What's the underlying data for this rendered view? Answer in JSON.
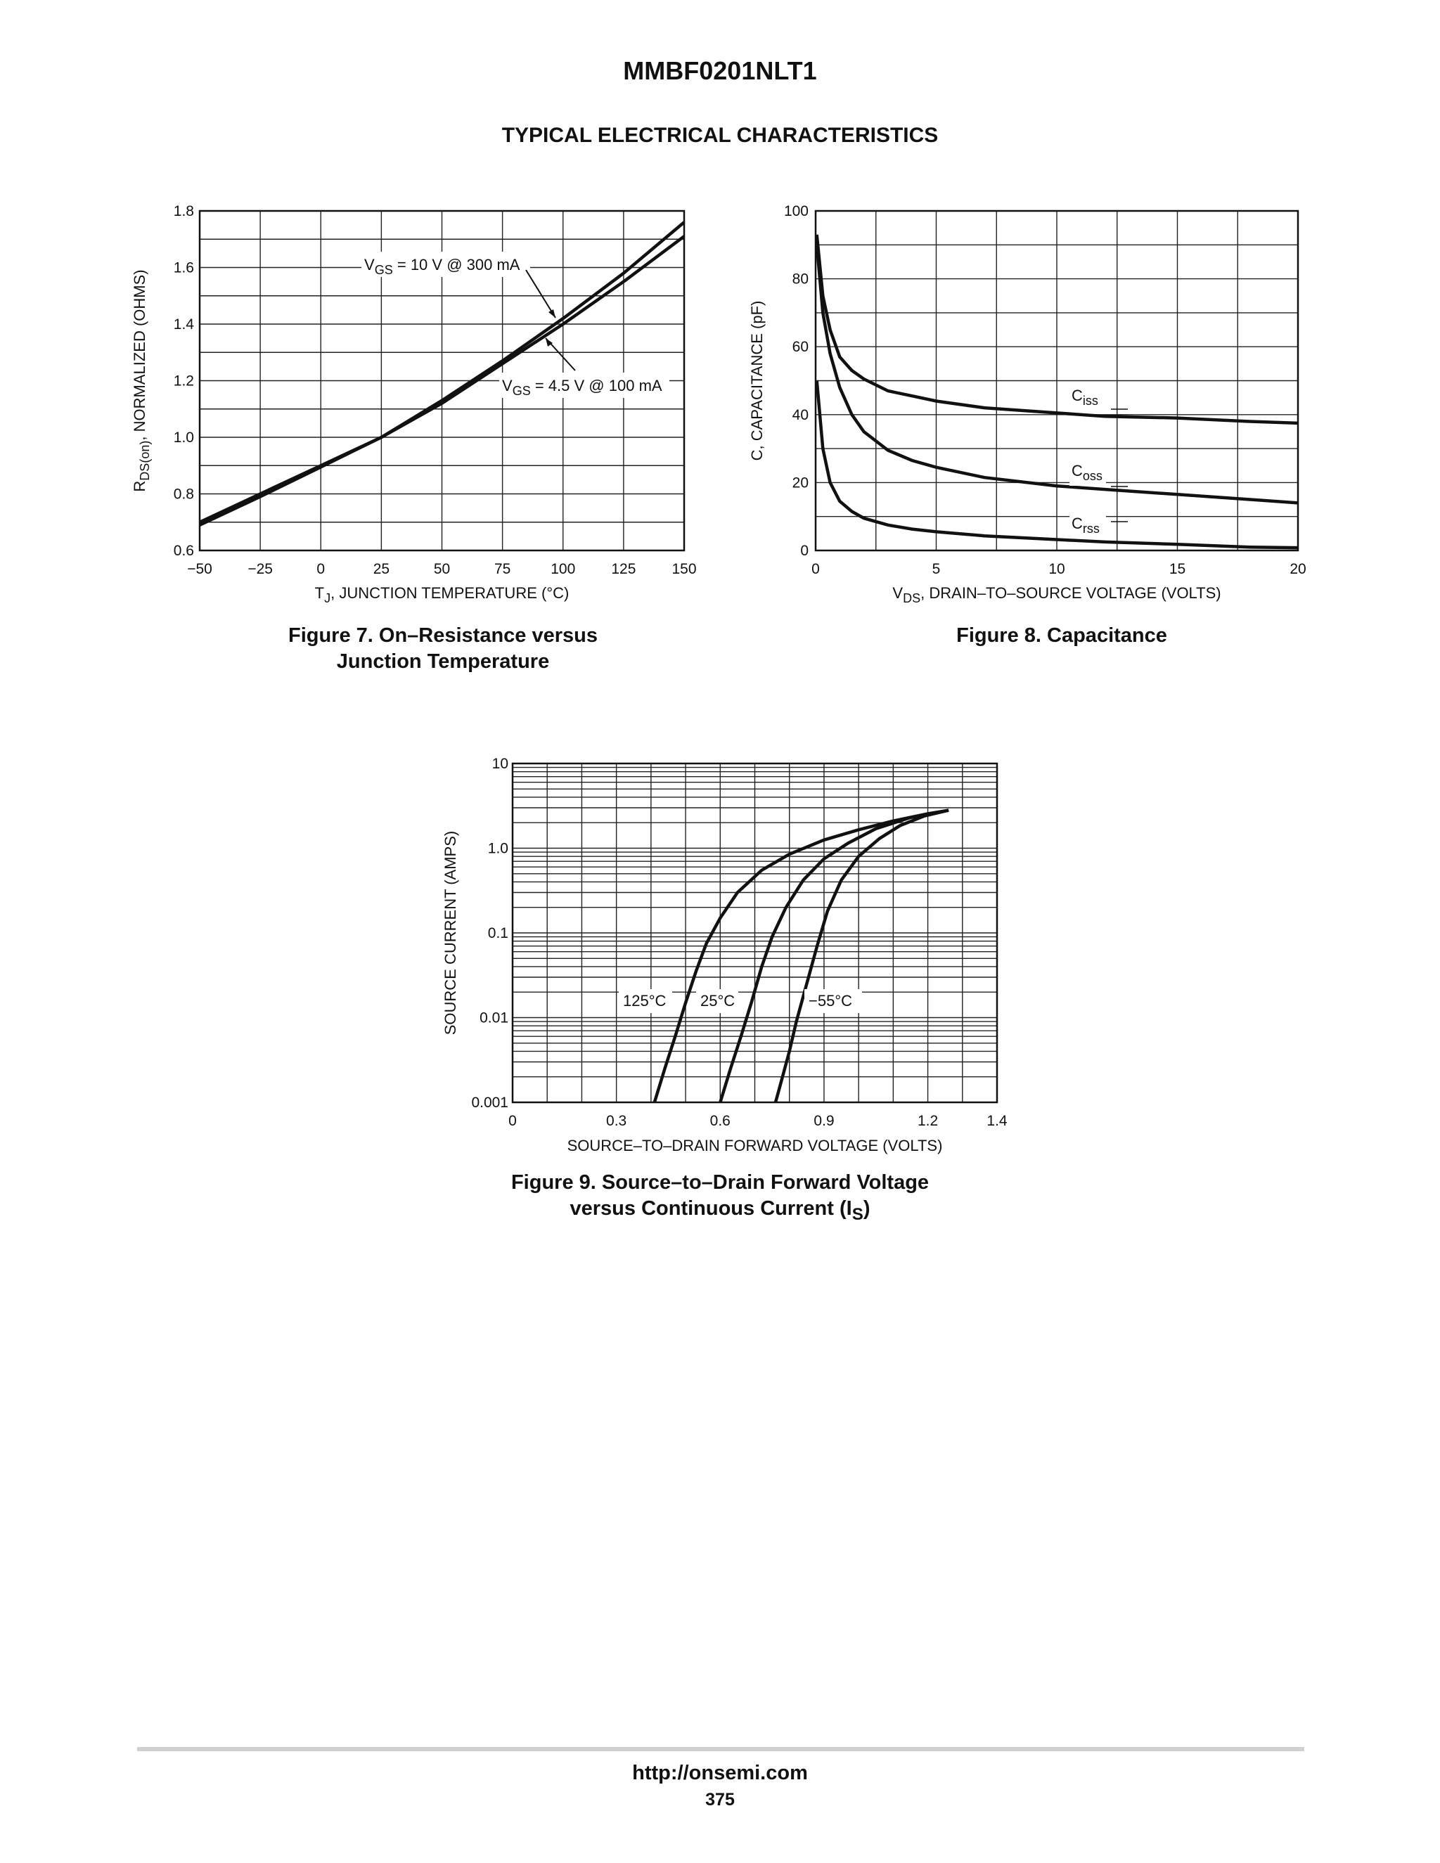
{
  "header": {
    "part_number": "MMBF0201NLT1",
    "section_title": "TYPICAL ELECTRICAL CHARACTERISTICS"
  },
  "footer": {
    "url": "http://onsemi.com",
    "page": "375"
  },
  "figures": {
    "fig7": {
      "caption_line1": "Figure 7. On–Resistance versus",
      "caption_line2": "Junction Temperature"
    },
    "fig8": {
      "caption_line1": "Figure 8. Capacitance"
    },
    "fig9": {
      "caption_line1": "Figure 9. Source–to–Drain Forward Voltage",
      "caption_line2_pre": "versus Continuous Current (I",
      "caption_line2_sub": "S",
      "caption_line2_post": ")"
    }
  },
  "chart_data": [
    {
      "id": "fig7",
      "type": "line",
      "title": "Figure 7. On–Resistance versus Junction Temperature",
      "xlabel": "TJ, JUNCTION TEMPERATURE (°C)",
      "xlabel_parts": {
        "pre": "T",
        "sub": "J",
        "post": ", JUNCTION TEMPERATURE (°C)"
      },
      "ylabel": "RDS(on), NORMALIZED (OHMS)",
      "ylabel_parts": {
        "pre": "R",
        "sub": "DS(on)",
        "post": ", NORMALIZED (OHMS)"
      },
      "xlim": [
        -50,
        150
      ],
      "ylim": [
        0.6,
        1.8
      ],
      "xticks": [
        "−50",
        "−25",
        "0",
        "25",
        "50",
        "75",
        "100",
        "125",
        "150"
      ],
      "yticks": [
        "0.6",
        "0.8",
        "1.0",
        "1.2",
        "1.4",
        "1.6",
        "1.8"
      ],
      "grid": true,
      "series": [
        {
          "name": "VGS = 10 V @ 300 mA",
          "label_parts": {
            "pre": "V",
            "sub": "GS",
            "post": " = 10 V @ 300 mA"
          },
          "x": [
            -50,
            -25,
            0,
            25,
            50,
            75,
            100,
            125,
            150
          ],
          "y": [
            0.69,
            0.79,
            0.895,
            1.0,
            1.13,
            1.27,
            1.42,
            1.58,
            1.76
          ]
        },
        {
          "name": "VGS = 4.5 V @ 100 mA",
          "label_parts": {
            "pre": "V",
            "sub": "GS",
            "post": " = 4.5 V @ 100 mA"
          },
          "x": [
            -50,
            -25,
            0,
            25,
            50,
            75,
            100,
            125,
            150
          ],
          "y": [
            0.7,
            0.8,
            0.9,
            1.0,
            1.12,
            1.26,
            1.4,
            1.55,
            1.71
          ]
        }
      ]
    },
    {
      "id": "fig8",
      "type": "line",
      "title": "Figure 8. Capacitance",
      "xlabel": "VDS, DRAIN–TO–SOURCE VOLTAGE (VOLTS)",
      "xlabel_parts": {
        "pre": "V",
        "sub": "DS",
        "post": ", DRAIN–TO–SOURCE VOLTAGE (VOLTS)"
      },
      "ylabel": "C, CAPACITANCE (pF)",
      "xlim": [
        0,
        20
      ],
      "ylim": [
        0,
        100
      ],
      "xticks": [
        "0",
        "5",
        "10",
        "15",
        "20"
      ],
      "yticks": [
        "0",
        "20",
        "40",
        "60",
        "80",
        "100"
      ],
      "grid": true,
      "series": [
        {
          "name": "Ciss",
          "label_parts": {
            "pre": "C",
            "sub": "iss"
          },
          "x": [
            0.05,
            0.3,
            0.6,
            1,
            1.5,
            2,
            3,
            4,
            5,
            7,
            10,
            12,
            15,
            18,
            20
          ],
          "y": [
            93,
            75,
            65,
            57,
            53,
            50.5,
            47,
            45.5,
            44,
            42,
            40.5,
            39.5,
            39,
            38,
            37.5
          ]
        },
        {
          "name": "Coss",
          "label_parts": {
            "pre": "C",
            "sub": "oss"
          },
          "x": [
            0.05,
            0.3,
            0.6,
            1,
            1.5,
            2,
            3,
            4,
            5,
            7,
            10,
            12,
            15,
            18,
            20
          ],
          "y": [
            90,
            70,
            58,
            48,
            40,
            35,
            29.5,
            26.5,
            24.5,
            21.5,
            19,
            18,
            16.5,
            15,
            14
          ]
        },
        {
          "name": "Crss",
          "label_parts": {
            "pre": "C",
            "sub": "rss"
          },
          "x": [
            0.05,
            0.3,
            0.6,
            1,
            1.5,
            2,
            3,
            4,
            5,
            7,
            10,
            12,
            15,
            18,
            20
          ],
          "y": [
            50,
            30,
            20,
            14.5,
            11.5,
            9.5,
            7.5,
            6.3,
            5.5,
            4.3,
            3.2,
            2.5,
            1.8,
            1.0,
            0.8
          ]
        }
      ]
    },
    {
      "id": "fig9",
      "type": "line",
      "title": "Figure 9. Source–to–Drain Forward Voltage versus Continuous Current (IS)",
      "xlabel": "SOURCE–TO–DRAIN FORWARD VOLTAGE (VOLTS)",
      "ylabel": "SOURCE CURRENT (AMPS)",
      "xlim": [
        0,
        1.4
      ],
      "ylim": [
        0.001,
        10
      ],
      "yscale": "log",
      "xticks": [
        "0",
        "0.3",
        "0.6",
        "0.9",
        "1.2",
        "1.4"
      ],
      "yticks": [
        "0.001",
        "0.01",
        "0.1",
        "1.0",
        "10"
      ],
      "grid": true,
      "series": [
        {
          "name": "125°C",
          "x": [
            0.41,
            0.44,
            0.47,
            0.5,
            0.53,
            0.56,
            0.6,
            0.65,
            0.72,
            0.8,
            0.9,
            1.0,
            1.1,
            1.2,
            1.26
          ],
          "y": [
            0.001,
            0.0025,
            0.006,
            0.015,
            0.035,
            0.075,
            0.15,
            0.3,
            0.55,
            0.85,
            1.25,
            1.65,
            2.1,
            2.55,
            2.8
          ]
        },
        {
          "name": "25°C",
          "x": [
            0.6,
            0.63,
            0.66,
            0.69,
            0.72,
            0.75,
            0.79,
            0.84,
            0.9,
            0.97,
            1.05,
            1.15,
            1.26
          ],
          "y": [
            0.001,
            0.0025,
            0.006,
            0.015,
            0.04,
            0.09,
            0.2,
            0.42,
            0.75,
            1.15,
            1.7,
            2.3,
            2.8
          ]
        },
        {
          "name": "−55°C",
          "x": [
            0.76,
            0.78,
            0.8,
            0.82,
            0.85,
            0.88,
            0.91,
            0.95,
            1.0,
            1.06,
            1.12,
            1.19,
            1.26
          ],
          "y": [
            0.001,
            0.002,
            0.004,
            0.009,
            0.025,
            0.07,
            0.18,
            0.42,
            0.8,
            1.3,
            1.85,
            2.4,
            2.8
          ]
        }
      ]
    }
  ]
}
